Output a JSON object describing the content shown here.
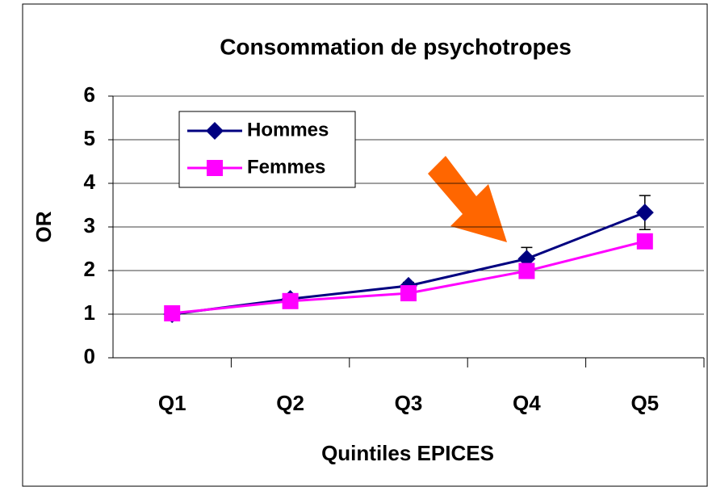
{
  "chart_data": {
    "type": "line",
    "title": "Consommation de psychotropes",
    "x_label": "Quintiles EPICES",
    "y_label": "OR",
    "categories": [
      "Q1",
      "Q2",
      "Q3",
      "Q4",
      "Q5"
    ],
    "series": [
      {
        "name": "Hommes",
        "color": "#000080",
        "marker": "diamond",
        "values": [
          1.0,
          1.35,
          1.65,
          2.27,
          3.33
        ],
        "errors": [
          0.05,
          0.06,
          0.08,
          0.26,
          0.39
        ]
      },
      {
        "name": "Femmes",
        "color": "#ff00ff",
        "marker": "square",
        "values": [
          1.02,
          1.3,
          1.48,
          1.99,
          2.67
        ]
      }
    ],
    "ylim": [
      0,
      6
    ],
    "yticks": [
      0,
      1,
      2,
      3,
      4,
      5,
      6
    ],
    "grid": true,
    "legend": "upper left"
  }
}
